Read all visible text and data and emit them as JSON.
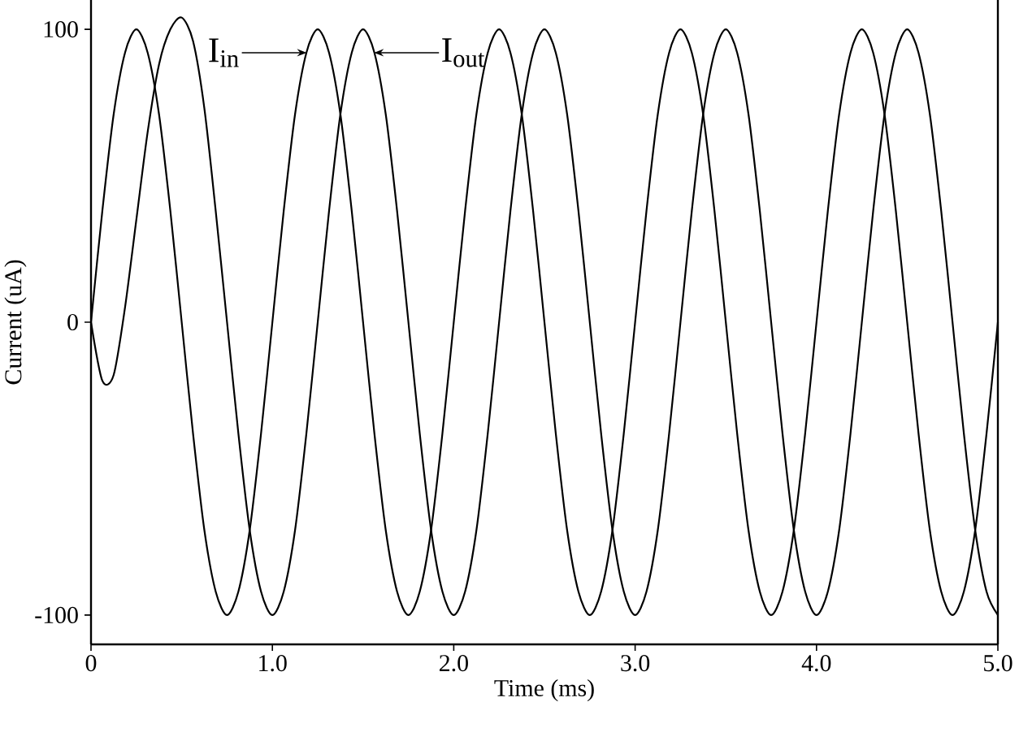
{
  "chart_data": {
    "type": "line",
    "xlabel": "Time (ms)",
    "ylabel": "Current (uA)",
    "xlim": [
      0,
      5
    ],
    "ylim": [
      -110,
      110
    ],
    "xticks": [
      0,
      {
        "value": 1,
        "label": "1.0"
      },
      {
        "value": 2,
        "label": "2.0"
      },
      {
        "value": 3,
        "label": "3.0"
      },
      {
        "value": 4,
        "label": "4.0"
      },
      {
        "value": 5,
        "label": "5.0"
      }
    ],
    "yticks": [
      -100,
      0,
      100
    ],
    "annotations": [
      {
        "text": "I$_{in}$",
        "x": 1.19,
        "y": 92
      },
      {
        "text": "I$_{out}$",
        "x": 1.56,
        "y": 92
      }
    ],
    "grid": false,
    "marker": "none",
    "line_style": "solid",
    "x": [
      0,
      0.0625,
      0.125,
      0.1875,
      0.25,
      0.3125,
      0.375,
      0.4375,
      0.5,
      0.5625,
      0.625,
      0.6875,
      0.75,
      0.8125,
      0.875,
      0.9375,
      1,
      1.0625,
      1.125,
      1.1875,
      1.25,
      1.3125,
      1.375,
      1.4375,
      1.5,
      1.5625,
      1.625,
      1.6875,
      1.75,
      1.8125,
      1.875,
      1.9375,
      2,
      2.0625,
      2.125,
      2.1875,
      2.25,
      2.3125,
      2.375,
      2.4375,
      2.5,
      2.5625,
      2.625,
      2.6875,
      2.75,
      2.8125,
      2.875,
      2.9375,
      3,
      3.0625,
      3.125,
      3.1875,
      3.25,
      3.3125,
      3.375,
      3.4375,
      3.5,
      3.5625,
      3.625,
      3.6875,
      3.75,
      3.8125,
      3.875,
      3.9375,
      4,
      4.0625,
      4.125,
      4.1875,
      4.25,
      4.3125,
      4.375,
      4.4375,
      4.5,
      4.5625,
      4.625,
      4.6875,
      4.75,
      4.8125,
      4.875,
      4.9375,
      5
    ],
    "series": [
      {
        "color": "#000000",
        "values": [
          0,
          38,
          71,
          92,
          100,
          92,
          71,
          38,
          0,
          -38,
          -71,
          -92,
          -100,
          -92,
          -71,
          -38,
          0,
          38,
          71,
          92,
          100,
          92,
          71,
          38,
          0,
          -38,
          -71,
          -92,
          -100,
          -92,
          -71,
          -38,
          0,
          38,
          71,
          92,
          100,
          92,
          71,
          38,
          0,
          -38,
          -71,
          -92,
          -100,
          -92,
          -71,
          -38,
          0,
          38,
          71,
          92,
          100,
          92,
          71,
          38,
          0,
          -38,
          -71,
          -92,
          -100,
          -92,
          -71,
          -38,
          0,
          38,
          71,
          92,
          100,
          92,
          71,
          38,
          0,
          -38,
          -71,
          -92,
          -100,
          -92,
          -71,
          -38,
          0
        ]
      },
      {
        "color": "#000000",
        "values": [
          0,
          -20,
          -18,
          5,
          35,
          65,
          88,
          100,
          104,
          96,
          73,
          38,
          0,
          -38,
          -71,
          -92,
          -100,
          -92,
          -71,
          -38,
          0,
          38,
          71,
          92,
          100,
          92,
          71,
          38,
          0,
          -38,
          -71,
          -92,
          -100,
          -92,
          -71,
          -38,
          0,
          38,
          71,
          92,
          100,
          92,
          71,
          38,
          0,
          -38,
          -71,
          -92,
          -100,
          -92,
          -71,
          -38,
          0,
          38,
          71,
          92,
          100,
          92,
          71,
          38,
          0,
          -38,
          -71,
          -92,
          -100,
          -92,
          -71,
          -38,
          0,
          38,
          71,
          92,
          100,
          92,
          71,
          38,
          0,
          -38,
          -71,
          -92,
          -100
        ]
      }
    ]
  }
}
